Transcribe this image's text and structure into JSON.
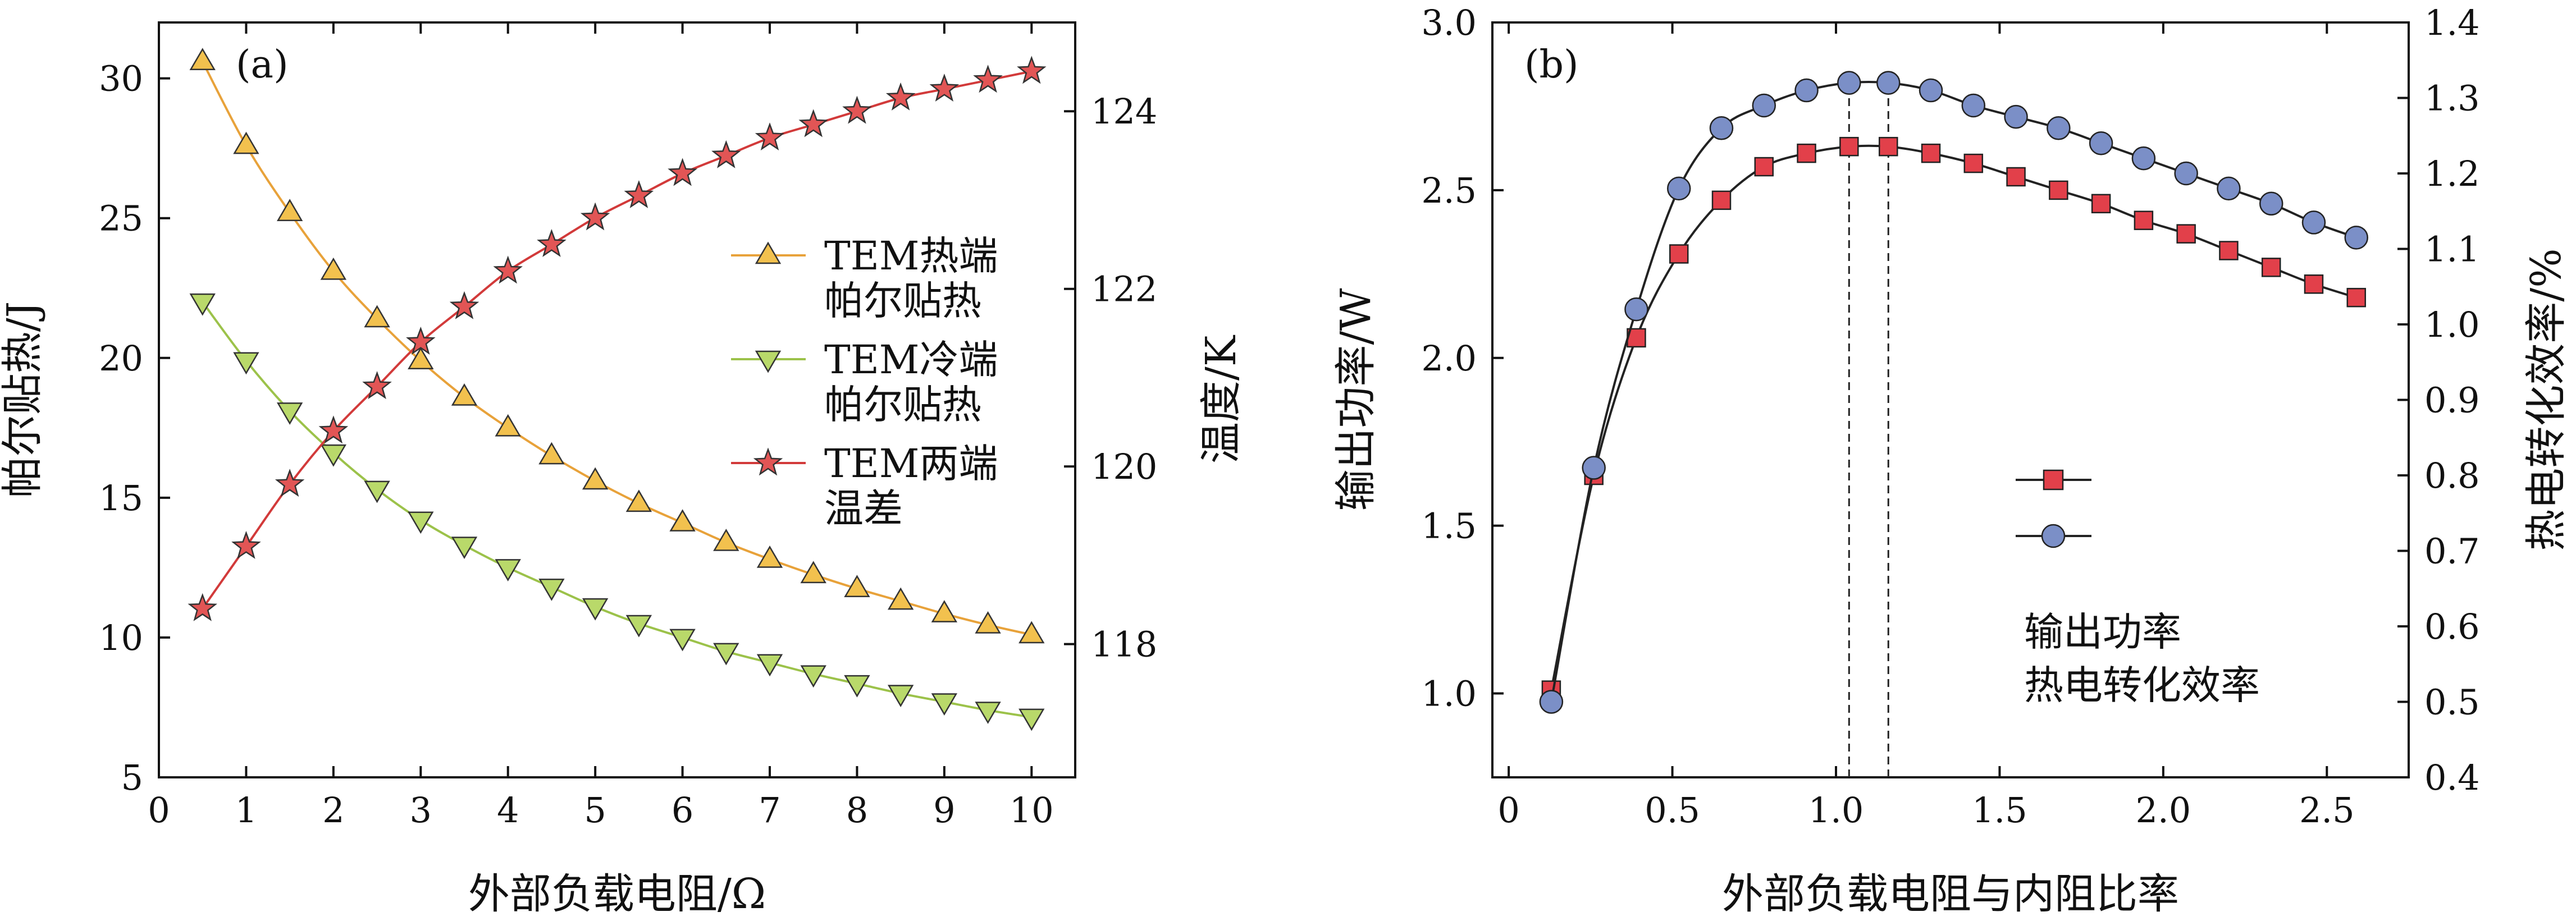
{
  "chart_data": [
    {
      "panel": "(a)",
      "type": "line",
      "xlabel": "外部负载电阻/Ω",
      "ylabel": "帕尔贴热/J",
      "y2label": "温度/K",
      "xlim": [
        0,
        10.5
      ],
      "ylim": [
        5,
        32
      ],
      "y2lim": [
        116.5,
        125.0
      ],
      "xticks": [
        0,
        1,
        2,
        3,
        4,
        5,
        6,
        7,
        8,
        9,
        10
      ],
      "yticks": [
        5,
        10,
        15,
        20,
        25,
        30
      ],
      "y2ticks": [
        118,
        120,
        122,
        124
      ],
      "x": [
        0.5,
        1.0,
        1.5,
        2.0,
        2.5,
        3.0,
        3.5,
        4.0,
        4.5,
        5.0,
        5.5,
        6.0,
        6.5,
        7.0,
        7.5,
        8.0,
        8.5,
        9.0,
        9.5,
        10.0
      ],
      "series": [
        {
          "name_lines": [
            "TEM热端",
            "帕尔贴热"
          ],
          "axis": "left",
          "marker": "triangle-up",
          "color": "#e8a23a",
          "fill": "#f2c14e",
          "values": [
            30.6,
            27.6,
            25.2,
            23.1,
            21.4,
            19.9,
            18.6,
            17.5,
            16.5,
            15.6,
            14.8,
            14.1,
            13.4,
            12.8,
            12.25,
            11.75,
            11.3,
            10.85,
            10.45,
            10.1
          ]
        },
        {
          "name_lines": [
            "TEM冷端",
            "帕尔贴热"
          ],
          "axis": "left",
          "marker": "triangle-down",
          "color": "#9cc24a",
          "fill": "#b9d96a",
          "values": [
            22.0,
            19.9,
            18.1,
            16.6,
            15.3,
            14.2,
            13.3,
            12.5,
            11.8,
            11.1,
            10.5,
            10.0,
            9.5,
            9.1,
            8.7,
            8.35,
            8.0,
            7.7,
            7.4,
            7.15
          ]
        },
        {
          "name_lines": [
            "TEM两端",
            "温差"
          ],
          "axis": "right",
          "marker": "star",
          "color": "#d23a3a",
          "fill": "#e25555",
          "values": [
            118.4,
            119.1,
            119.8,
            120.4,
            120.9,
            121.4,
            121.8,
            122.2,
            122.5,
            122.8,
            123.05,
            123.3,
            123.5,
            123.7,
            123.85,
            124.0,
            124.15,
            124.25,
            124.35,
            124.45
          ]
        }
      ]
    },
    {
      "panel": "(b)",
      "type": "line",
      "xlabel": "外部负载电阻与内阻比率",
      "ylabel": "输出功率/W",
      "y2label": "热电转化效率/%",
      "xlim": [
        -0.05,
        2.75
      ],
      "ylim": [
        0.75,
        3.0
      ],
      "y2lim": [
        0.4,
        1.4
      ],
      "xticks": [
        0.0,
        0.5,
        1.0,
        1.5,
        2.0,
        2.5
      ],
      "xtick_labels": [
        "0",
        "0.5",
        "1.0",
        "1.5",
        "2.0",
        "2.5"
      ],
      "yticks": [
        1.0,
        1.5,
        2.0,
        2.5,
        3.0
      ],
      "ytick_labels": [
        "1.0",
        "1.5",
        "2.0",
        "2.5",
        "3.0"
      ],
      "y2ticks": [
        0.4,
        0.5,
        0.6,
        0.7,
        0.8,
        0.9,
        1.0,
        1.1,
        1.2,
        1.3,
        1.4
      ],
      "y2tick_labels": [
        "0.4",
        "0.5",
        "0.6",
        "0.7",
        "0.8",
        "0.9",
        "1.0",
        "1.1",
        "1.2",
        "1.3",
        "1.4"
      ],
      "x": [
        0.13,
        0.26,
        0.39,
        0.52,
        0.65,
        0.78,
        0.91,
        1.04,
        1.16,
        1.29,
        1.42,
        1.55,
        1.68,
        1.81,
        1.94,
        2.07,
        2.2,
        2.33,
        2.46,
        2.59
      ],
      "vlines": [
        1.04,
        1.16
      ],
      "series": [
        {
          "name": "输出功率",
          "axis": "left",
          "marker": "square",
          "color": "#222222",
          "fill": "#e2404a",
          "values": [
            1.01,
            1.65,
            2.06,
            2.31,
            2.47,
            2.57,
            2.61,
            2.63,
            2.63,
            2.61,
            2.58,
            2.54,
            2.5,
            2.46,
            2.41,
            2.37,
            2.32,
            2.27,
            2.22,
            2.18
          ]
        },
        {
          "name": "热电转化效率",
          "axis": "right",
          "marker": "circle",
          "color": "#222222",
          "fill": "#7b8fc7",
          "values": [
            0.5,
            0.81,
            1.02,
            1.18,
            1.26,
            1.29,
            1.31,
            1.32,
            1.32,
            1.31,
            1.29,
            1.275,
            1.26,
            1.24,
            1.22,
            1.2,
            1.18,
            1.16,
            1.135,
            1.115
          ]
        }
      ]
    }
  ]
}
